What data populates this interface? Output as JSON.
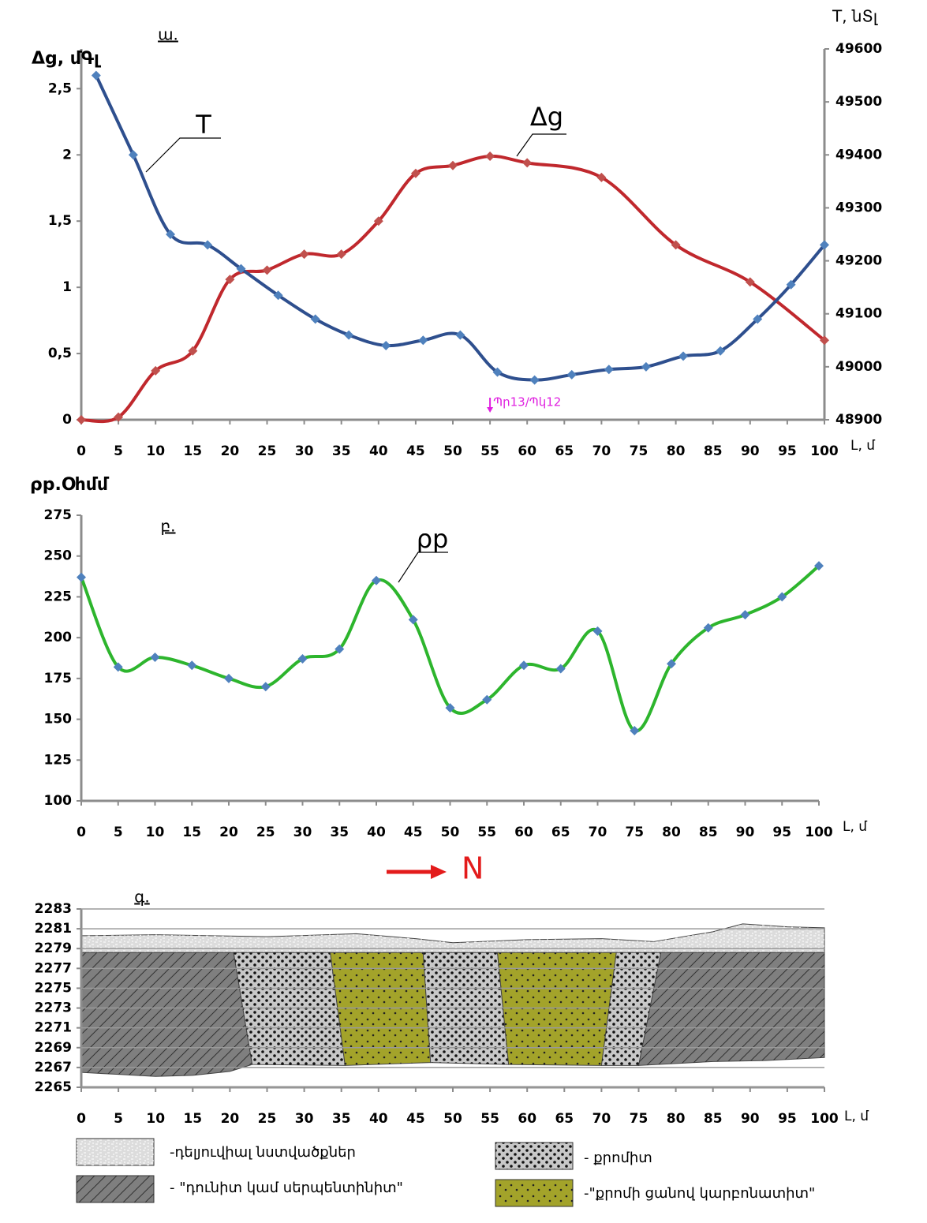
{
  "chart_data": [
    {
      "type": "line",
      "label": "ա.",
      "ylabel": "Δg, մԳլ",
      "y2label": "T, նՏլ",
      "xlabel": "L, մ",
      "xlim": [
        0,
        100
      ],
      "xticks": [
        0,
        5,
        10,
        15,
        20,
        25,
        30,
        35,
        40,
        45,
        50,
        55,
        60,
        65,
        70,
        75,
        80,
        85,
        90,
        95,
        100
      ],
      "ylim": [
        0,
        2.8
      ],
      "yticks": [
        0,
        {
          "value": 0.5,
          "label": "0,5"
        },
        1,
        {
          "value": 1.5,
          "label": "1,5"
        },
        2,
        {
          "value": 2.5,
          "label": "2,5"
        }
      ],
      "y2lim": [
        48900,
        49600
      ],
      "y2ticks": [
        48900,
        49000,
        49100,
        49200,
        49300,
        49400,
        49500,
        49600
      ],
      "annotation": {
        "text": "Պր13/Պկ12",
        "x": 55
      },
      "series": [
        {
          "name": "Δg",
          "color": "#c0282d",
          "marker_color": "#c0504d",
          "x": [
            0,
            5,
            10,
            15,
            20,
            25,
            30,
            35,
            40,
            45,
            50,
            55,
            60,
            70,
            80,
            90,
            100
          ],
          "values": [
            0,
            0.02,
            0.37,
            0.52,
            1.06,
            1.13,
            1.25,
            1.25,
            1.5,
            1.86,
            1.92,
            1.99,
            1.94,
            1.83,
            1.32,
            1.04,
            0.6
          ]
        },
        {
          "name": "T",
          "color": "#2e4f8e",
          "marker_color": "#4f81bd",
          "axis": "y2",
          "x": [
            2,
            7,
            12,
            17,
            21.5,
            26.5,
            31.5,
            36,
            41,
            46,
            51,
            56,
            61,
            66,
            71,
            76,
            81,
            86,
            91,
            95.5,
            100
          ],
          "values": [
            49550,
            49400,
            49250,
            49230,
            49185,
            49135,
            49090,
            49060,
            49040,
            49050,
            49060,
            48990,
            48975,
            48985,
            48995,
            49000,
            49020,
            49030,
            49090,
            49155,
            49230
          ]
        }
      ]
    },
    {
      "type": "line",
      "label": "բ.",
      "ylabel": "ρp.Օհմմ",
      "xlabel": "L, մ",
      "xlim": [
        0,
        100
      ],
      "xticks": [
        0,
        5,
        10,
        15,
        20,
        25,
        30,
        35,
        40,
        45,
        50,
        55,
        60,
        65,
        70,
        75,
        80,
        85,
        90,
        95,
        100
      ],
      "ylim": [
        100,
        275
      ],
      "yticks": [
        100,
        125,
        150,
        175,
        200,
        225,
        250,
        275
      ],
      "direction_label": "N",
      "series": [
        {
          "name": "ρp",
          "color": "#2db52d",
          "marker_color": "#4f81bd",
          "x": [
            0,
            5,
            10,
            15,
            20,
            25,
            30,
            35,
            40,
            45,
            50,
            55,
            60,
            65,
            70,
            75,
            80,
            85,
            90,
            95,
            100
          ],
          "values": [
            237,
            182,
            188,
            183,
            175,
            170,
            187,
            193,
            235,
            211,
            157,
            162,
            183,
            181,
            204,
            143,
            184,
            206,
            214,
            225,
            244
          ]
        }
      ]
    },
    {
      "type": "section",
      "label": "գ.",
      "xlabel": "L, մ",
      "grid": true,
      "xlim": [
        0,
        100
      ],
      "xticks": [
        0,
        5,
        10,
        15,
        20,
        25,
        30,
        35,
        40,
        45,
        50,
        55,
        60,
        65,
        70,
        75,
        80,
        85,
        90,
        95,
        100
      ],
      "ylim": [
        2265,
        2283
      ],
      "yticks": [
        2265,
        2267,
        2269,
        2271,
        2273,
        2275,
        2277,
        2279,
        2281,
        2283
      ],
      "legend": [
        {
          "name": "-դելյուվիալ նստվածքներ",
          "color": "#dcdcdc"
        },
        {
          "name": "- \"դունիտ կամ սերպենտինիտ\"",
          "color": "#7f7f7f"
        },
        {
          "name": "- քրոմիտ",
          "color": "#c8c8c8"
        },
        {
          "name": "-\"քրոմի ցանով կարբոնատիտ\"",
          "color": "#a3a32a"
        }
      ]
    }
  ]
}
